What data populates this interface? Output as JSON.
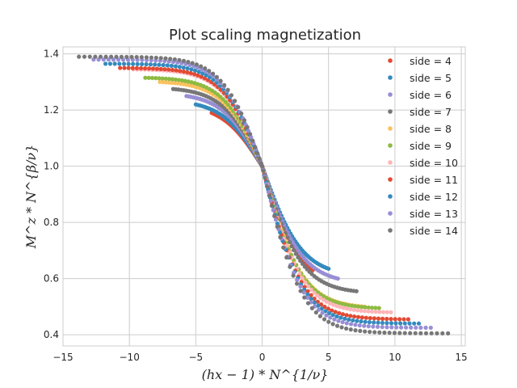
{
  "chart_data": {
    "type": "scatter",
    "title": "Plot scaling magnetization",
    "xlabel": "(hx − 1) * N^{1/ν}",
    "ylabel": "M^z * N^{β/ν}",
    "xlim": [
      -15.0,
      15.3
    ],
    "ylim": [
      0.36,
      1.425
    ],
    "x_ticks": [
      -15,
      -10,
      -5,
      0,
      5,
      10,
      15
    ],
    "x_tick_labels": [
      "−15",
      "−10",
      "−5",
      "0",
      "5",
      "10",
      "15"
    ],
    "y_ticks": [
      0.4,
      0.6,
      0.8,
      1.0,
      1.2,
      1.4
    ],
    "y_tick_labels": [
      "0.4",
      "0.6",
      "0.8",
      "1.0",
      "1.2",
      "1.4"
    ],
    "grid": true,
    "legend_position": "top-right",
    "series": [
      {
        "name": "side = 4",
        "color": "#e24a33",
        "xmin": -3.8,
        "xmax": 3.8,
        "ystart": 1.19,
        "yend": 0.63
      },
      {
        "name": "side = 5",
        "color": "#348abd",
        "xmin": -5.0,
        "xmax": 5.0,
        "ystart": 1.22,
        "yend": 0.635
      },
      {
        "name": "side = 6",
        "color": "#988ed5",
        "xmin": -5.7,
        "xmax": 5.7,
        "ystart": 1.25,
        "yend": 0.6
      },
      {
        "name": "side = 7",
        "color": "#777777",
        "xmin": -6.7,
        "xmax": 7.1,
        "ystart": 1.275,
        "yend": 0.555
      },
      {
        "name": "side = 8",
        "color": "#fbc15e",
        "xmin": -7.7,
        "xmax": 7.7,
        "ystart": 1.3,
        "yend": 0.5
      },
      {
        "name": "side = 9",
        "color": "#8eba42",
        "xmin": -8.8,
        "xmax": 8.8,
        "ystart": 1.315,
        "yend": 0.495
      },
      {
        "name": "side = 10",
        "color": "#ffb5b8",
        "xmin": -9.7,
        "xmax": 9.7,
        "ystart": 1.345,
        "yend": 0.48
      },
      {
        "name": "side = 11",
        "color": "#e24a33",
        "xmin": -10.7,
        "xmax": 11.0,
        "ystart": 1.35,
        "yend": 0.455
      },
      {
        "name": "side = 12",
        "color": "#348abd",
        "xmin": -11.8,
        "xmax": 11.8,
        "ystart": 1.365,
        "yend": 0.44
      },
      {
        "name": "side = 13",
        "color": "#988ed5",
        "xmin": -12.7,
        "xmax": 12.7,
        "ystart": 1.38,
        "yend": 0.425
      },
      {
        "name": "side = 14",
        "color": "#777777",
        "xmin": -13.8,
        "xmax": 14.0,
        "ystart": 1.39,
        "yend": 0.405
      }
    ]
  }
}
